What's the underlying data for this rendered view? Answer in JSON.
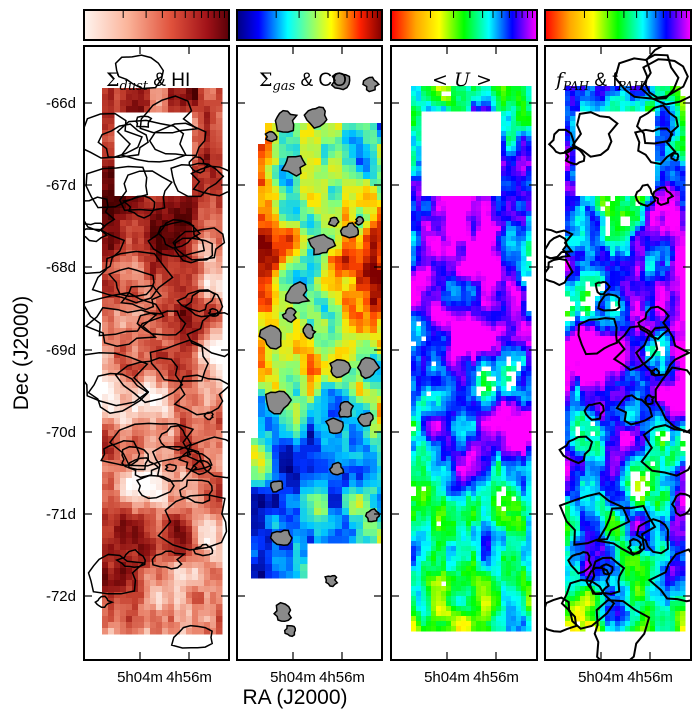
{
  "figure": {
    "ylabel": "Dec (J2000)",
    "xlabel": "RA (J2000)",
    "dec_ticks": [
      "-66d",
      "-67d",
      "-68d",
      "-69d",
      "-70d",
      "-71d",
      "-72d"
    ],
    "ra_ticks": [
      "5h04m",
      "4h56m"
    ],
    "panels": [
      {
        "title_main": "Σ",
        "title_sub": "dust",
        "title_rest": " & HI",
        "colormap": "reds",
        "contour": "black"
      },
      {
        "title_main": "Σ",
        "title_sub": "gas",
        "title_rest": " & CO",
        "colormap": "jet",
        "contour": "gray-black"
      },
      {
        "title_main": "< U >",
        "title_sub": "",
        "title_rest": "",
        "colormap": "rainbow",
        "contour": "none"
      },
      {
        "title_main": "f",
        "title_sub": "PAH",
        "title_rest": " & f",
        "title_sub2": "PAH",
        "colormap": "rainbow",
        "contour": "black"
      }
    ]
  },
  "colors": {
    "reds": [
      "#ffffff",
      "#f9c9b8",
      "#e9826a",
      "#c4402f",
      "#8b1010",
      "#4a0000"
    ],
    "jet": [
      "#00007f",
      "#0030ff",
      "#00c8ff",
      "#7fff7f",
      "#ffe600",
      "#ff4400",
      "#7f0000"
    ],
    "rainbow": [
      "#ff0000",
      "#ffa500",
      "#ffff00",
      "#00ff00",
      "#00ffff",
      "#0000ff",
      "#ff00ff"
    ]
  }
}
